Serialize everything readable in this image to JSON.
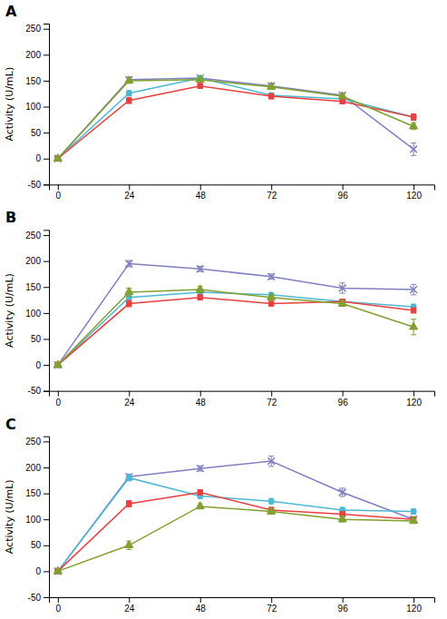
{
  "chart_data": [
    {
      "type": "line",
      "title": "A",
      "ylabel": "Activity (U/mL)",
      "x": [
        0,
        24,
        48,
        72,
        96,
        120
      ],
      "xlim": [
        -3,
        127
      ],
      "xticks": [
        0,
        24,
        48,
        72,
        96,
        120
      ],
      "ylim": [
        -50,
        260
      ],
      "yticks": [
        -50,
        0,
        50,
        100,
        150,
        200,
        250
      ],
      "grid": false,
      "series": [
        {
          "color": "#8080C0",
          "marker": "x",
          "line_style": "solid",
          "values": [
            0,
            152,
            155,
            140,
            122,
            18
          ],
          "errors": [
            2,
            5,
            4,
            5,
            4,
            12
          ]
        },
        {
          "color": "#4DB8D4",
          "marker": "circle",
          "line_style": "solid",
          "values": [
            0,
            126,
            155,
            122,
            115,
            80
          ],
          "errors": [
            2,
            5,
            4,
            4,
            4,
            5
          ]
        },
        {
          "color": "#E84040",
          "marker": "square",
          "line_style": "solid",
          "values": [
            0,
            112,
            140,
            120,
            110,
            80
          ],
          "errors": [
            2,
            6,
            5,
            5,
            4,
            6
          ]
        },
        {
          "color": "#80A030",
          "marker": "triangle",
          "line_style": "solid",
          "values": [
            0,
            150,
            152,
            138,
            120,
            62
          ],
          "errors": [
            2,
            5,
            4,
            4,
            4,
            6
          ]
        }
      ]
    },
    {
      "type": "line",
      "title": "B",
      "ylabel": "Activity (U/mL)",
      "x": [
        0,
        24,
        48,
        72,
        96,
        120
      ],
      "xlim": [
        -3,
        127
      ],
      "xticks": [
        0,
        24,
        48,
        72,
        96,
        120
      ],
      "ylim": [
        -50,
        260
      ],
      "yticks": [
        -50,
        0,
        50,
        100,
        150,
        200,
        250
      ],
      "grid": false,
      "series": [
        {
          "color": "#8080C0",
          "marker": "x",
          "line_style": "solid",
          "values": [
            0,
            195,
            185,
            170,
            148,
            145
          ],
          "errors": [
            2,
            6,
            5,
            5,
            10,
            10
          ]
        },
        {
          "color": "#4DB8D4",
          "marker": "circle",
          "line_style": "solid",
          "values": [
            0,
            130,
            140,
            135,
            122,
            112
          ],
          "errors": [
            2,
            5,
            5,
            4,
            4,
            5
          ]
        },
        {
          "color": "#E84040",
          "marker": "square",
          "line_style": "solid",
          "values": [
            0,
            118,
            130,
            118,
            122,
            105
          ],
          "errors": [
            2,
            6,
            5,
            4,
            4,
            5
          ]
        },
        {
          "color": "#80A030",
          "marker": "triangle",
          "line_style": "solid",
          "values": [
            0,
            140,
            145,
            130,
            118,
            73
          ],
          "errors": [
            2,
            8,
            6,
            5,
            5,
            15
          ]
        }
      ]
    },
    {
      "type": "line",
      "title": "C",
      "ylabel": "Activity (U/mL)",
      "x": [
        0,
        24,
        48,
        72,
        96,
        120
      ],
      "xlim": [
        -3,
        127
      ],
      "xticks": [
        0,
        24,
        48,
        72,
        96,
        120
      ],
      "ylim": [
        -50,
        260
      ],
      "yticks": [
        -50,
        0,
        50,
        100,
        150,
        200,
        250
      ],
      "grid": false,
      "series": [
        {
          "color": "#8080C0",
          "marker": "x",
          "line_style": "solid",
          "values": [
            0,
            182,
            198,
            212,
            152,
            100
          ],
          "errors": [
            2,
            5,
            5,
            10,
            8,
            5
          ]
        },
        {
          "color": "#4DB8D4",
          "marker": "circle",
          "line_style": "solid",
          "values": [
            0,
            180,
            145,
            135,
            118,
            115
          ],
          "errors": [
            2,
            6,
            5,
            5,
            5,
            5
          ]
        },
        {
          "color": "#E84040",
          "marker": "square",
          "line_style": "solid",
          "values": [
            0,
            130,
            152,
            118,
            110,
            100
          ],
          "errors": [
            2,
            6,
            5,
            5,
            5,
            4
          ]
        },
        {
          "color": "#80A030",
          "marker": "triangle",
          "line_style": "solid",
          "values": [
            0,
            50,
            125,
            115,
            100,
            97
          ],
          "errors": [
            2,
            8,
            5,
            5,
            5,
            5
          ]
        }
      ]
    }
  ]
}
